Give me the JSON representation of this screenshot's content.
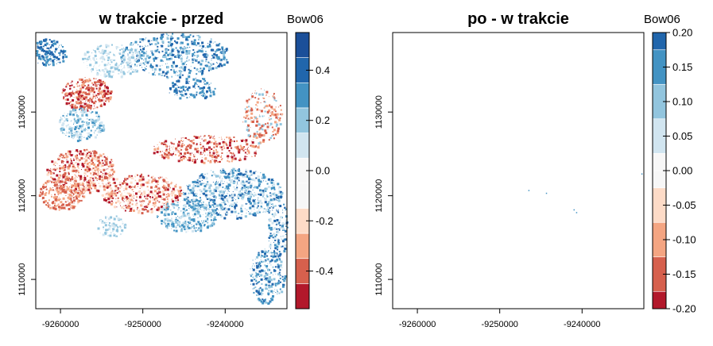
{
  "chart_data": [
    {
      "type": "heatmap",
      "title": "w trakcie - przed",
      "xlabel": "",
      "ylabel": "",
      "xlim": [
        -9263000,
        -9232500
      ],
      "ylim": [
        1106500,
        1139500
      ],
      "x_ticks": [
        -9260000,
        -9250000,
        -9240000
      ],
      "x_tick_labels": [
        "-9260000",
        "-9250000",
        "-9240000"
      ],
      "y_ticks": [
        1110000,
        1120000,
        1130000
      ],
      "y_tick_labels": [
        "1110000",
        "1120000",
        "1130000"
      ],
      "grid": false,
      "legend": {
        "title": "Bow06",
        "placement": "right",
        "range": [
          -0.55,
          0.55
        ],
        "breaks": [
          -0.55,
          -0.45,
          -0.35,
          -0.25,
          -0.15,
          -0.05,
          0.05,
          0.15,
          0.25,
          0.35,
          0.45,
          0.55
        ],
        "colors": [
          "#b2182b",
          "#d6604d",
          "#f4a582",
          "#fddbc7",
          "#f7f7f7",
          "#f7f7f7",
          "#d1e5f0",
          "#92c5de",
          "#4393c3",
          "#2166ac",
          "#1b4f99"
        ],
        "ticks": [
          -0.4,
          -0.2,
          0.0,
          0.2,
          0.4
        ],
        "tick_labels": [
          "-0.4",
          "-0.2",
          "0.0",
          "0.2",
          "0.4"
        ]
      }
    },
    {
      "type": "heatmap",
      "title": "po - w trakcie",
      "xlabel": "",
      "ylabel": "",
      "xlim": [
        -9263000,
        -9232500
      ],
      "ylim": [
        1106500,
        1139500
      ],
      "x_ticks": [
        -9260000,
        -9250000,
        -9240000
      ],
      "x_tick_labels": [
        "-9260000",
        "-9250000",
        "-9240000"
      ],
      "y_ticks": [
        1110000,
        1120000,
        1130000
      ],
      "y_tick_labels": [
        "1110000",
        "1120000",
        "1130000"
      ],
      "grid": false,
      "legend": {
        "title": "Bow06",
        "placement": "right",
        "range": [
          -0.2,
          0.2
        ],
        "breaks": [
          -0.2,
          -0.175,
          -0.125,
          -0.075,
          -0.025,
          0.0,
          0.025,
          0.075,
          0.125,
          0.175,
          0.2
        ],
        "colors": [
          "#b2182b",
          "#d6604d",
          "#f4a582",
          "#fddbc7",
          "#f7f7f7",
          "#f7f7f7",
          "#d1e5f0",
          "#92c5de",
          "#4393c3",
          "#2166ac"
        ],
        "ticks": [
          -0.2,
          -0.15,
          -0.1,
          -0.05,
          0.0,
          0.05,
          0.1,
          0.15,
          0.2
        ],
        "tick_labels": [
          "-0.20",
          "-0.15",
          "-0.10",
          "-0.05",
          "0.00",
          "0.05",
          "0.10",
          "0.15",
          "0.20"
        ]
      }
    }
  ]
}
